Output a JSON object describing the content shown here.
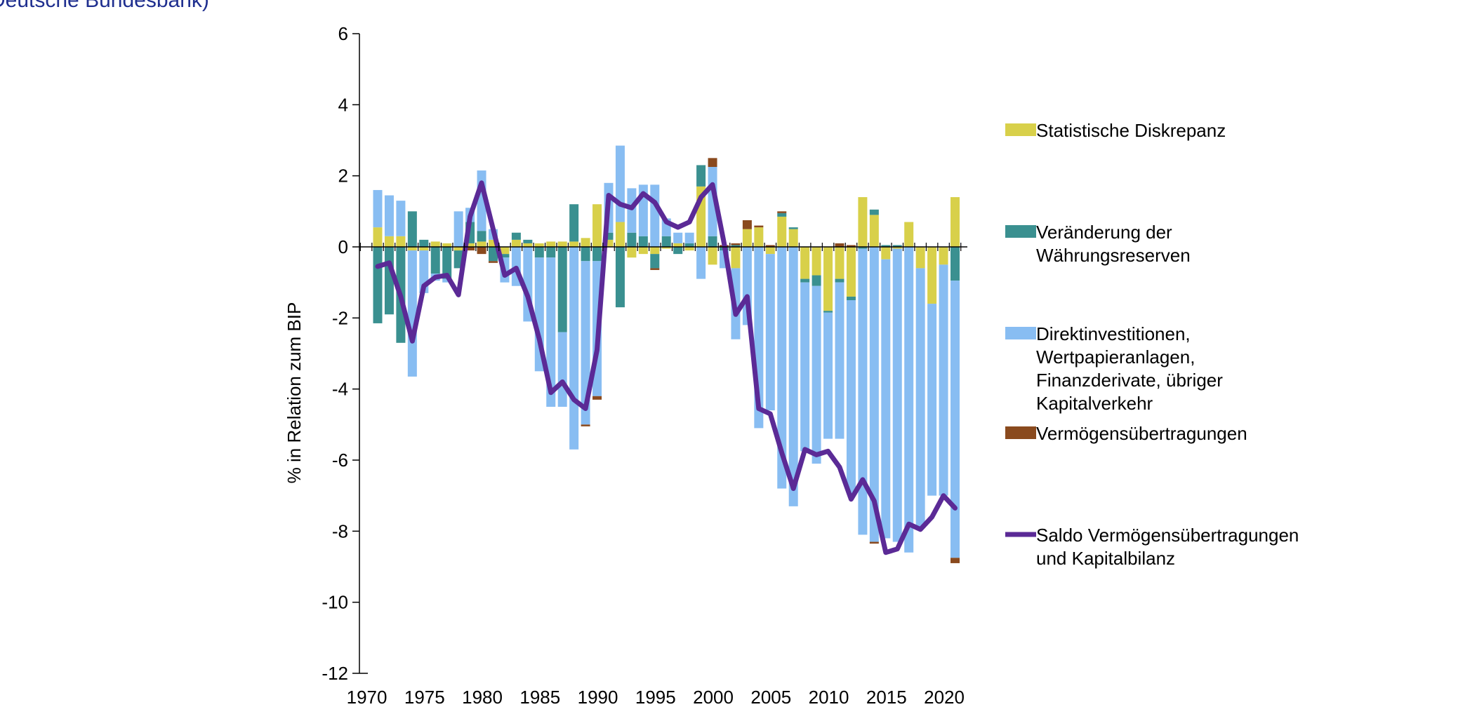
{
  "header_text": "Deutsche Bundesbank)",
  "chart_data": {
    "type": "bar",
    "ylabel": "% in Relation zum BIP",
    "ylim": [
      -12,
      6
    ],
    "yticks": [
      6,
      4,
      2,
      0,
      -2,
      -4,
      -6,
      -8,
      -10,
      -12
    ],
    "xticks": [
      1970,
      1975,
      1980,
      1985,
      1990,
      1995,
      2000,
      2005,
      2010,
      2015,
      2020
    ],
    "years": [
      1971,
      1972,
      1973,
      1974,
      1975,
      1976,
      1977,
      1978,
      1979,
      1980,
      1981,
      1982,
      1983,
      1984,
      1985,
      1986,
      1987,
      1988,
      1989,
      1990,
      1991,
      1992,
      1993,
      1994,
      1995,
      1996,
      1997,
      1998,
      1999,
      2000,
      2001,
      2002,
      2003,
      2004,
      2005,
      2006,
      2007,
      2008,
      2009,
      2010,
      2011,
      2012,
      2013,
      2014,
      2015,
      2016,
      2017,
      2018,
      2019,
      2020,
      2021
    ],
    "series": [
      {
        "name": "Statistische Diskrepanz",
        "color": "#d8d04a",
        "values": [
          0.55,
          0.3,
          0.3,
          -0.1,
          -0.1,
          0.15,
          0.1,
          -0.1,
          0.1,
          0.15,
          0.2,
          -0.2,
          0.2,
          0.1,
          0.1,
          0.15,
          0.15,
          0.15,
          0.25,
          1.2,
          0.2,
          0.7,
          -0.3,
          -0.2,
          -0.2,
          -0.05,
          0.1,
          -0.1,
          1.7,
          -0.5,
          0.0,
          -0.6,
          0.5,
          0.55,
          -0.2,
          0.85,
          0.5,
          -0.9,
          -0.8,
          -1.8,
          -0.9,
          -1.4,
          1.4,
          0.9,
          -0.35,
          -0.05,
          0.7,
          -0.6,
          -1.6,
          -0.5,
          1.4
        ]
      },
      {
        "name": "Veränderung der\nWährungsreserven",
        "color": "#3a9090",
        "values": [
          -2.15,
          -1.9,
          -2.7,
          1.0,
          0.2,
          -0.75,
          -0.9,
          -0.5,
          0.6,
          0.3,
          -0.4,
          -0.1,
          0.2,
          0.1,
          -0.3,
          -0.3,
          -2.4,
          1.05,
          -0.4,
          -0.4,
          0.2,
          -1.7,
          0.4,
          0.3,
          -0.4,
          0.3,
          -0.2,
          0.1,
          0.6,
          0.3,
          -0.1,
          0.05,
          0.0,
          0.0,
          0.0,
          0.1,
          0.05,
          -0.1,
          -0.3,
          -0.05,
          -0.1,
          -0.1,
          -0.05,
          0.15,
          0.05,
          0.05,
          0.0,
          0.0,
          0.0,
          0.0,
          -0.95
        ]
      },
      {
        "name": "Direktinvestitionen,\nWertpapieranlagen,\nFinanzderivate, übriger\nKapitalverkehr",
        "color": "#88bdf2",
        "values": [
          1.05,
          1.15,
          1.0,
          -3.55,
          -1.2,
          -0.2,
          -0.1,
          1.0,
          0.4,
          1.7,
          0.3,
          -0.7,
          -1.1,
          -2.1,
          -3.2,
          -4.2,
          -2.1,
          -5.7,
          -4.6,
          -3.8,
          1.4,
          2.15,
          1.25,
          1.45,
          1.75,
          0.5,
          0.3,
          0.3,
          -0.9,
          1.95,
          -0.5,
          -2.0,
          -2.2,
          -5.1,
          -4.4,
          -6.8,
          -7.3,
          -4.75,
          -5.0,
          -3.55,
          -4.4,
          -5.45,
          -8.05,
          -8.3,
          -7.85,
          -8.25,
          -8.6,
          -7.3,
          -5.4,
          -6.5,
          -7.8
        ]
      },
      {
        "name": "Vermögensübertragungen",
        "color": "#8a4a1e",
        "values": [
          0,
          0,
          0,
          0,
          0,
          0,
          0,
          0,
          -0.1,
          -0.2,
          -0.05,
          0,
          0,
          0,
          0,
          0,
          0,
          0,
          -0.05,
          -0.1,
          0,
          0,
          0,
          0,
          -0.05,
          0,
          0,
          0,
          0,
          0.25,
          0.05,
          0.05,
          0.25,
          0.05,
          0.05,
          0.05,
          0.0,
          0.0,
          0.0,
          0.0,
          0.1,
          0.05,
          0.0,
          -0.05,
          0.0,
          0.0,
          0.0,
          0.0,
          0.0,
          0.0,
          -0.15
        ]
      }
    ],
    "line": {
      "name": "Saldo Vermögensübertragungen\nund Kapitalbilanz",
      "color": "#5b2a96",
      "values": [
        -0.55,
        -0.45,
        -1.4,
        -2.65,
        -1.1,
        -0.85,
        -0.8,
        -1.35,
        0.85,
        1.8,
        0.5,
        -0.8,
        -0.6,
        -1.4,
        -2.6,
        -4.1,
        -3.8,
        -4.3,
        -4.55,
        -2.9,
        1.45,
        1.2,
        1.1,
        1.5,
        1.25,
        0.7,
        0.55,
        0.7,
        1.4,
        1.75,
        0.1,
        -1.9,
        -1.4,
        -4.55,
        -4.7,
        -5.8,
        -6.8,
        -5.7,
        -5.85,
        -5.75,
        -6.2,
        -7.1,
        -6.55,
        -7.15,
        -8.6,
        -8.5,
        -7.8,
        -7.95,
        -7.6,
        -7.0,
        -7.35
      ]
    }
  }
}
